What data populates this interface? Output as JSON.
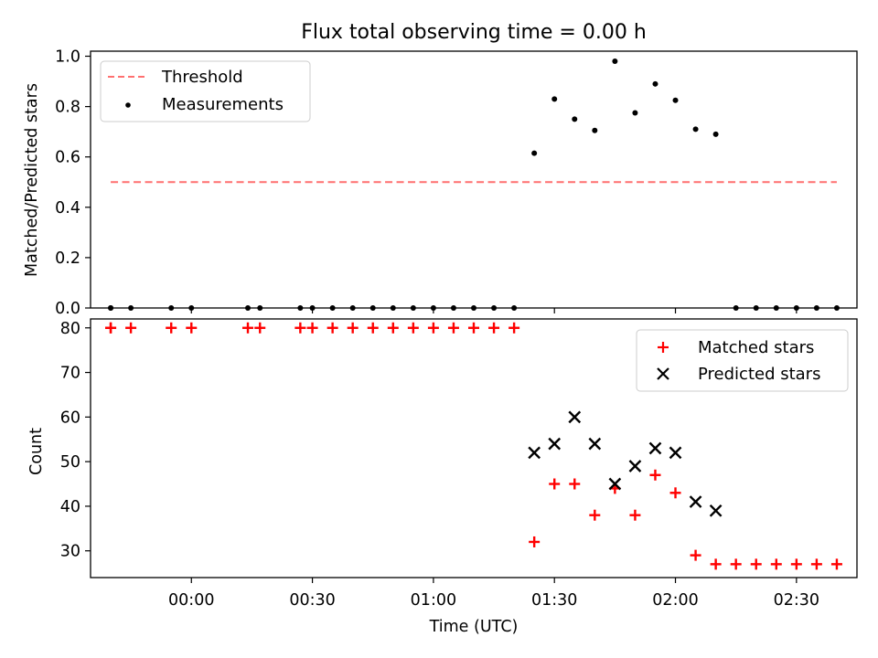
{
  "chart_data": [
    {
      "type": "scatter",
      "title": "Flux total observing time = 0.00 h",
      "xlabel": "",
      "ylabel": "Matched/Predicted stars",
      "xlim": [
        "23:35",
        "02:45"
      ],
      "ylim": [
        0,
        1.02
      ],
      "yticks": [
        "0.0",
        "0.2",
        "0.4",
        "0.6",
        "0.8",
        "1.0"
      ],
      "legend_position": "top-left",
      "threshold": {
        "name": "Threshold",
        "value": 0.5,
        "x_range": [
          "23:40",
          "02:40"
        ],
        "color": "#ff7070"
      },
      "series": [
        {
          "name": "Measurements",
          "marker": "dot",
          "color": "#000000",
          "x": [
            "23:40",
            "23:40",
            "23:45",
            "23:55",
            "00:00",
            "00:14",
            "00:17",
            "00:27",
            "00:30",
            "00:35",
            "00:40",
            "00:45",
            "00:50",
            "00:55",
            "01:00",
            "01:05",
            "01:10",
            "01:15",
            "01:20",
            "01:25",
            "01:30",
            "01:35",
            "01:40",
            "01:45",
            "01:50",
            "01:55",
            "02:00",
            "02:05",
            "02:10",
            "02:15",
            "02:20",
            "02:25",
            "02:30",
            "02:35",
            "02:40"
          ],
          "y": [
            0,
            0,
            0,
            0,
            0,
            0,
            0,
            0,
            0,
            0,
            0,
            0,
            0,
            0,
            0,
            0,
            0,
            0,
            0,
            0.615,
            0.83,
            0.75,
            0.705,
            0.98,
            0.775,
            0.89,
            0.825,
            0.71,
            0.69,
            0,
            0,
            0,
            0,
            0,
            0
          ]
        }
      ]
    },
    {
      "type": "scatter",
      "title": "",
      "xlabel": "Time (UTC)",
      "ylabel": "Count",
      "xlim": [
        "23:35",
        "02:45"
      ],
      "ylim": [
        24,
        82
      ],
      "yticks": [
        "30",
        "40",
        "50",
        "60",
        "70",
        "80"
      ],
      "xticks": [
        "00:00",
        "00:30",
        "01:00",
        "01:30",
        "02:00",
        "02:30"
      ],
      "legend_position": "top-right",
      "series": [
        {
          "name": "Matched stars",
          "marker": "plus",
          "color": "#ff0000",
          "x": [
            "23:40",
            "23:40",
            "23:45",
            "23:55",
            "00:00",
            "00:14",
            "00:17",
            "00:27",
            "00:30",
            "00:35",
            "00:40",
            "00:45",
            "00:50",
            "00:55",
            "01:00",
            "01:05",
            "01:10",
            "01:15",
            "01:20",
            "01:25",
            "01:30",
            "01:35",
            "01:40",
            "01:45",
            "01:50",
            "01:55",
            "02:00",
            "02:05",
            "02:10",
            "02:15",
            "02:20",
            "02:25",
            "02:30",
            "02:35",
            "02:40"
          ],
          "y": [
            80,
            80,
            80,
            80,
            80,
            80,
            80,
            80,
            80,
            80,
            80,
            80,
            80,
            80,
            80,
            80,
            80,
            80,
            80,
            32,
            45,
            45,
            38,
            44,
            38,
            47,
            43,
            29,
            27,
            27,
            27,
            27,
            27,
            27,
            27
          ]
        },
        {
          "name": "Predicted stars",
          "marker": "x",
          "color": "#000000",
          "x": [
            "01:25",
            "01:30",
            "01:35",
            "01:40",
            "01:45",
            "01:50",
            "01:55",
            "02:00",
            "02:05",
            "02:10"
          ],
          "y": [
            52,
            54,
            60,
            54,
            45,
            49,
            53,
            52,
            41,
            39
          ]
        }
      ]
    }
  ]
}
